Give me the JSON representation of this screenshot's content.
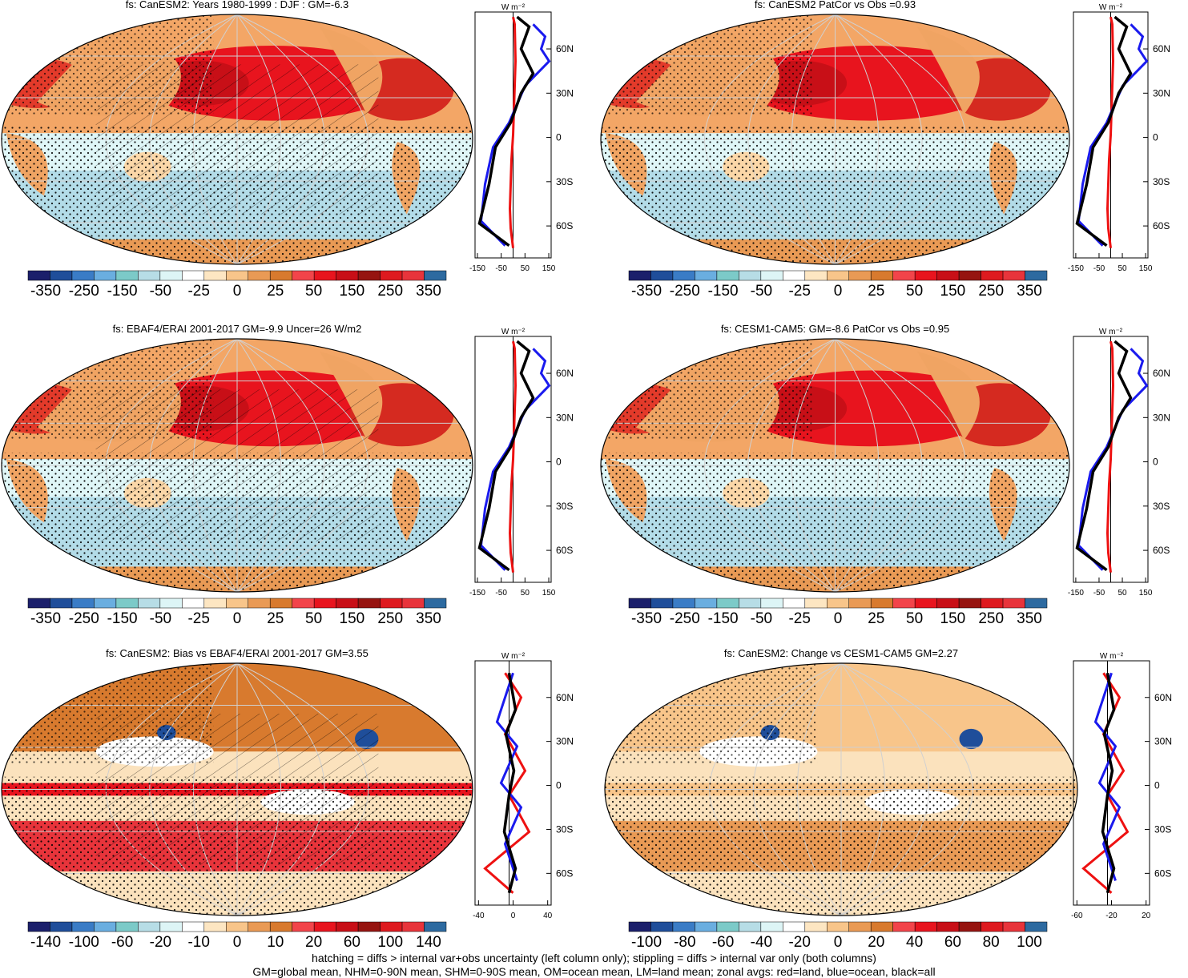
{
  "colormaps": {
    "main": [
      "#1b1f6b",
      "#1f4e9a",
      "#3a7cc6",
      "#6aaee0",
      "#7ccac8",
      "#b7dde6",
      "#ddf5f6",
      "#ffffff",
      "#fde6c2",
      "#f8c58a",
      "#e99a55",
      "#d87a2e",
      "#f2444a",
      "#e8141e",
      "#c80f17",
      "#961410",
      "#de1a1f",
      "#e8343b",
      "#2d6aa0"
    ],
    "land": "#f0a463",
    "ocean_cool": "#b3dce8",
    "ocean_pale": "#dff6f7"
  },
  "panels": [
    {
      "title": "fs: CanESM2: Years 1980-1999 : DJF : GM=-6.3",
      "cbar_labels": [
        "-350",
        "-250",
        "-150",
        "-50",
        "-25",
        "0",
        "25",
        "50",
        "150",
        "250",
        "350"
      ],
      "zonal_ticks": [
        "-150",
        "-50",
        "50",
        "150"
      ],
      "zonal_unit": "W m⁻²",
      "lat_labels": [
        "60N",
        "30N",
        "0",
        "30S",
        "60S"
      ],
      "style": "clim"
    },
    {
      "title": "fs: CanESM2 PatCor vs Obs =0.93",
      "cbar_labels": [
        "-350",
        "-250",
        "-150",
        "-50",
        "-25",
        "0",
        "25",
        "50",
        "150",
        "250",
        "350"
      ],
      "zonal_ticks": [
        "-150",
        "-50",
        "50",
        "150"
      ],
      "zonal_unit": "W m⁻²",
      "lat_labels": [
        "60N",
        "30N",
        "0",
        "30S",
        "60S"
      ],
      "style": "clim"
    },
    {
      "title": "fs: EBAF4/ERAI 2001-2017 GM=-9.9 Uncer=26 W/m2",
      "cbar_labels": [
        "-350",
        "-250",
        "-150",
        "-50",
        "-25",
        "0",
        "25",
        "50",
        "150",
        "250",
        "350"
      ],
      "zonal_ticks": [
        "-150",
        "-50",
        "50",
        "150"
      ],
      "zonal_unit": "W m⁻²",
      "lat_labels": [
        "60N",
        "30N",
        "0",
        "30S",
        "60S"
      ],
      "style": "clim"
    },
    {
      "title": "fs: CESM1-CAM5: GM=-8.6 PatCor vs Obs =0.95",
      "cbar_labels": [
        "-350",
        "-250",
        "-150",
        "-50",
        "-25",
        "0",
        "25",
        "50",
        "150",
        "250",
        "350"
      ],
      "zonal_ticks": [
        "-150",
        "-50",
        "50",
        "150"
      ],
      "zonal_unit": "W m⁻²",
      "lat_labels": [
        "60N",
        "30N",
        "0",
        "30S",
        "60S"
      ],
      "style": "clim"
    },
    {
      "title": "fs: CanESM2: Bias vs EBAF4/ERAI 2001-2017 GM=3.55",
      "cbar_labels": [
        "-140",
        "-100",
        "-60",
        "-20",
        "-10",
        "0",
        "10",
        "20",
        "60",
        "100",
        "140"
      ],
      "zonal_ticks": [
        "-40",
        "0",
        "40"
      ],
      "zonal_unit": "W m⁻²",
      "lat_labels": [
        "60N",
        "30N",
        "0",
        "30S",
        "60S"
      ],
      "style": "diff"
    },
    {
      "title": "fs: CanESM2: Change vs CESM1-CAM5 GM=2.27",
      "cbar_labels": [
        "-100",
        "-80",
        "-60",
        "-40",
        "-20",
        "0",
        "20",
        "40",
        "60",
        "80",
        "100"
      ],
      "zonal_ticks": [
        "-60",
        "-20",
        "20"
      ],
      "zonal_unit": "W m⁻²",
      "lat_labels": [
        "60N",
        "30N",
        "0",
        "30S",
        "60S"
      ],
      "style": "diff"
    }
  ],
  "footer": {
    "line1": "hatching = diffs > internal var+obs uncertainty (left column only); stippling = diffs > internal var only (both columns)",
    "line2": "GM=global mean, NHM=0-90N mean, SHM=0-90S mean, OM=ocean mean, LM=land mean; zonal avgs: red=land, blue=ocean, black=all"
  }
}
